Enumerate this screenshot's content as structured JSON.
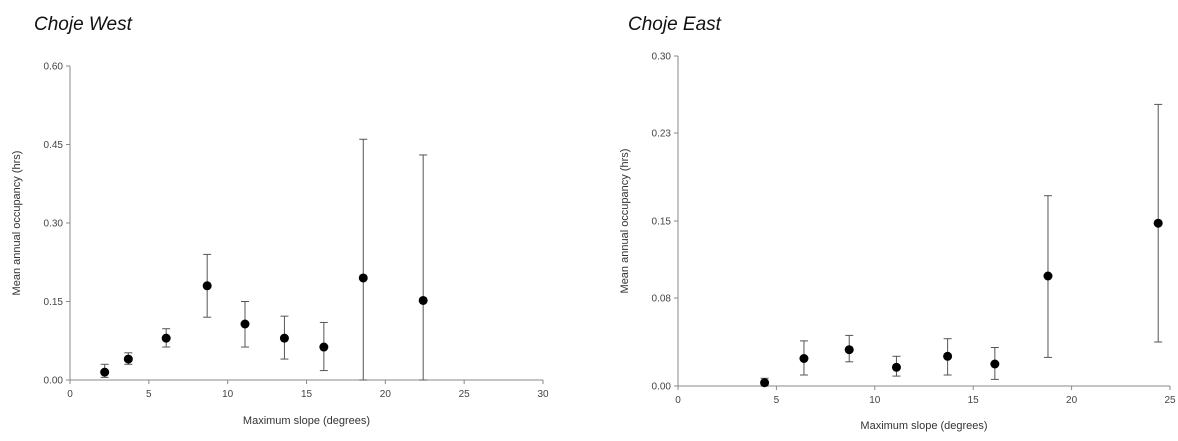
{
  "chart_data": [
    {
      "type": "scatter",
      "title": "Choje West",
      "xlabel": "Maximum slope (degrees)",
      "ylabel": "Mean annual occupancy (hrs)",
      "xlim": [
        0,
        30
      ],
      "ylim": [
        0,
        0.6
      ],
      "xticks": [
        0,
        5,
        10,
        15,
        20,
        25,
        30
      ],
      "yticks": [
        "0.00",
        "0.15",
        "0.30",
        "0.45",
        "0.60"
      ],
      "grid": false,
      "points": [
        {
          "x": 2.2,
          "y": 0.015,
          "lo": 0.005,
          "hi": 0.03
        },
        {
          "x": 3.7,
          "y": 0.04,
          "lo": 0.03,
          "hi": 0.052
        },
        {
          "x": 6.1,
          "y": 0.08,
          "lo": 0.063,
          "hi": 0.098
        },
        {
          "x": 8.7,
          "y": 0.18,
          "lo": 0.12,
          "hi": 0.24
        },
        {
          "x": 11.1,
          "y": 0.107,
          "lo": 0.063,
          "hi": 0.15
        },
        {
          "x": 13.6,
          "y": 0.08,
          "lo": 0.04,
          "hi": 0.122
        },
        {
          "x": 16.1,
          "y": 0.063,
          "lo": 0.018,
          "hi": 0.11
        },
        {
          "x": 18.6,
          "y": 0.195,
          "lo": 0.0,
          "hi": 0.46
        },
        {
          "x": 22.4,
          "y": 0.152,
          "lo": 0.0,
          "hi": 0.43
        }
      ]
    },
    {
      "type": "scatter",
      "title": "Choje East",
      "xlabel": "Maximum slope (degrees)",
      "ylabel": "Mean annual occupancy (hrs)",
      "xlim": [
        0,
        25
      ],
      "ylim": [
        0,
        0.3
      ],
      "xticks": [
        0,
        5,
        10,
        15,
        20,
        25
      ],
      "yticks": [
        "0.00",
        "0.08",
        "0.15",
        "0.23",
        "0.30"
      ],
      "grid": false,
      "points": [
        {
          "x": 4.4,
          "y": 0.003,
          "lo": 0.0,
          "hi": 0.007
        },
        {
          "x": 6.4,
          "y": 0.025,
          "lo": 0.01,
          "hi": 0.041
        },
        {
          "x": 8.7,
          "y": 0.033,
          "lo": 0.022,
          "hi": 0.046
        },
        {
          "x": 11.1,
          "y": 0.017,
          "lo": 0.009,
          "hi": 0.027
        },
        {
          "x": 13.7,
          "y": 0.027,
          "lo": 0.01,
          "hi": 0.043
        },
        {
          "x": 16.1,
          "y": 0.02,
          "lo": 0.006,
          "hi": 0.035
        },
        {
          "x": 18.8,
          "y": 0.1,
          "lo": 0.026,
          "hi": 0.173
        },
        {
          "x": 24.4,
          "y": 0.148,
          "lo": 0.04,
          "hi": 0.256
        }
      ]
    }
  ]
}
